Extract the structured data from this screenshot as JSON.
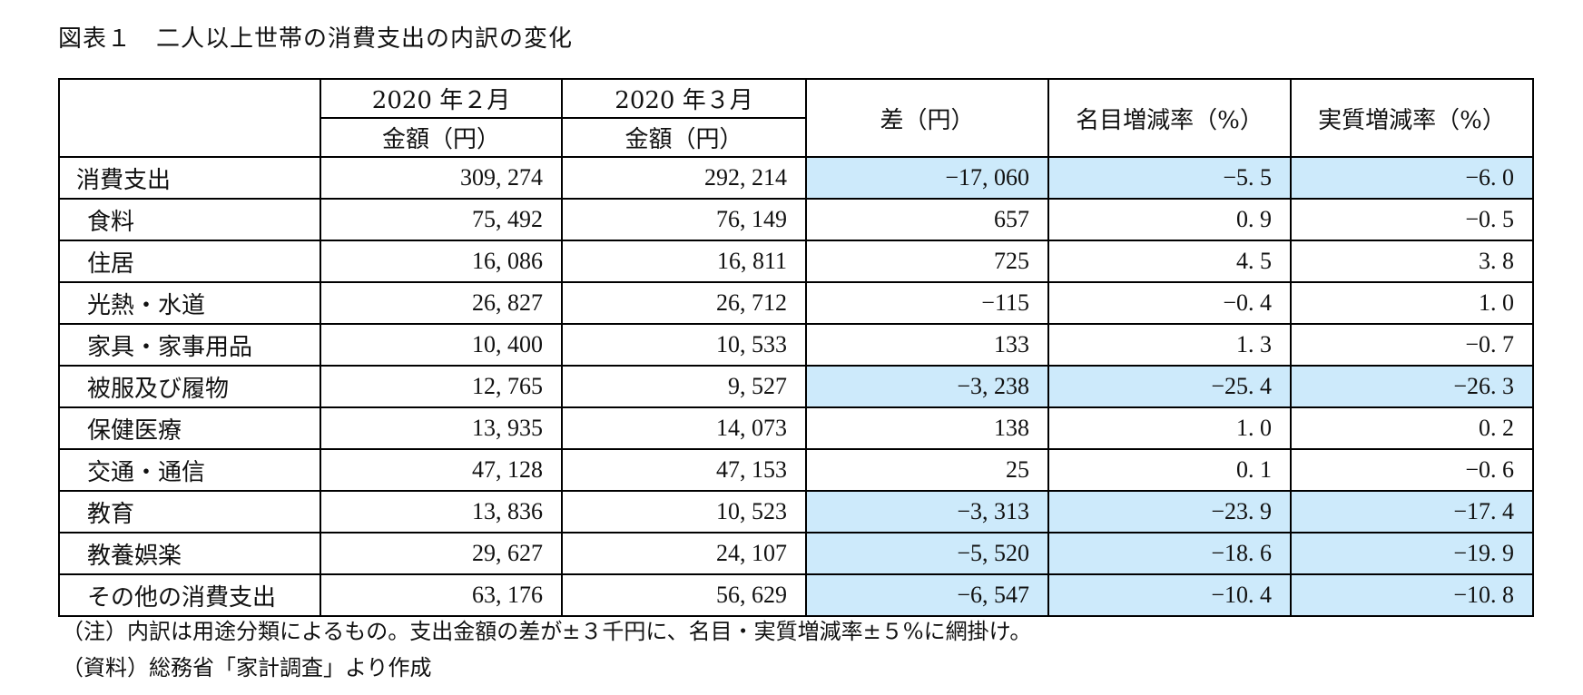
{
  "title": "図表１　二人以上世帯の消費支出の内訳の変化",
  "header": {
    "col_feb_period": "2020 年２月",
    "col_mar_period": "2020 年３月",
    "col_feb_unit": "金額（円）",
    "col_mar_unit": "金額（円）",
    "col_diff": "差（円）",
    "col_nominal": "名目増減率（%）",
    "col_real": "実質増減率（%）"
  },
  "highlight_color": "#cdeafb",
  "rows": [
    {
      "label": "消費支出",
      "feb": "309, 274",
      "mar": "292, 214",
      "diff": "−17, 060",
      "nominal": "−5. 5",
      "real": "−6. 0",
      "highlight_diff": true,
      "highlight_nominal": true,
      "highlight_real": true
    },
    {
      "label": "食料",
      "feb": "75, 492",
      "mar": "76, 149",
      "diff": "657",
      "nominal": "0. 9",
      "real": "−0. 5"
    },
    {
      "label": "住居",
      "feb": "16, 086",
      "mar": "16, 811",
      "diff": "725",
      "nominal": "4. 5",
      "real": "3. 8"
    },
    {
      "label": "光熱・水道",
      "feb": "26, 827",
      "mar": "26, 712",
      "diff": "−115",
      "nominal": "−0. 4",
      "real": "1. 0"
    },
    {
      "label": "家具・家事用品",
      "feb": "10, 400",
      "mar": "10, 533",
      "diff": "133",
      "nominal": "1. 3",
      "real": "−0. 7"
    },
    {
      "label": "被服及び履物",
      "feb": "12, 765",
      "mar": "9, 527",
      "diff": "−3, 238",
      "nominal": "−25. 4",
      "real": "−26. 3",
      "highlight_diff": true,
      "highlight_nominal": true,
      "highlight_real": true
    },
    {
      "label": "保健医療",
      "feb": "13, 935",
      "mar": "14, 073",
      "diff": "138",
      "nominal": "1. 0",
      "real": "0. 2"
    },
    {
      "label": "交通・通信",
      "feb": "47, 128",
      "mar": "47, 153",
      "diff": "25",
      "nominal": "0. 1",
      "real": "−0. 6"
    },
    {
      "label": "教育",
      "feb": "13, 836",
      "mar": "10, 523",
      "diff": "−3, 313",
      "nominal": "−23. 9",
      "real": "−17. 4",
      "highlight_diff": true,
      "highlight_nominal": true,
      "highlight_real": true
    },
    {
      "label": "教養娯楽",
      "feb": "29, 627",
      "mar": "24, 107",
      "diff": "−5, 520",
      "nominal": "−18. 6",
      "real": "−19. 9",
      "highlight_diff": true,
      "highlight_nominal": true,
      "highlight_real": true
    },
    {
      "label": "その他の消費支出",
      "feb": "63, 176",
      "mar": "56, 629",
      "diff": "−6, 547",
      "nominal": "−10. 4",
      "real": "−10. 8",
      "highlight_diff": true,
      "highlight_nominal": true,
      "highlight_real": true
    }
  ],
  "notes": {
    "note": "（注）内訳は用途分類によるもの。支出金額の差が±３千円に、名目・実質増減率±５%に網掛け。",
    "source": "（資料）総務省「家計調査」より作成"
  }
}
